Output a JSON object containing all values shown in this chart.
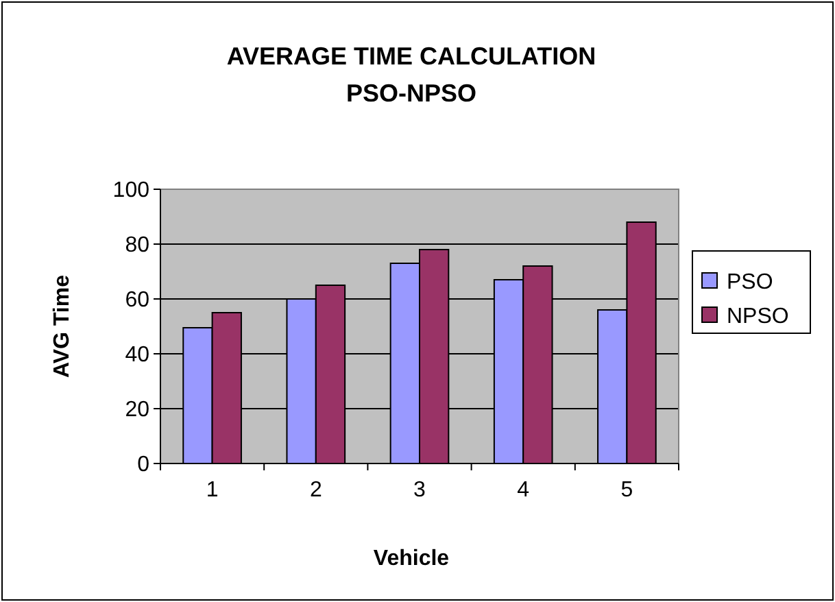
{
  "chart_data": {
    "type": "bar",
    "title": "AVERAGE TIME CALCULATION PSO-NPSO",
    "xlabel": "Vehicle",
    "ylabel": "AVG Time",
    "categories": [
      "1",
      "2",
      "3",
      "4",
      "5"
    ],
    "series": [
      {
        "name": "PSO",
        "color": "#9999ff",
        "values": [
          49.5,
          60,
          73,
          67,
          56
        ]
      },
      {
        "name": "NPSO",
        "color": "#993366",
        "values": [
          55,
          65,
          78,
          72,
          88
        ]
      }
    ],
    "ylim": [
      0,
      100
    ],
    "yticks": [
      0,
      20,
      40,
      60,
      80,
      100
    ],
    "grid": "y",
    "legend": "right"
  }
}
